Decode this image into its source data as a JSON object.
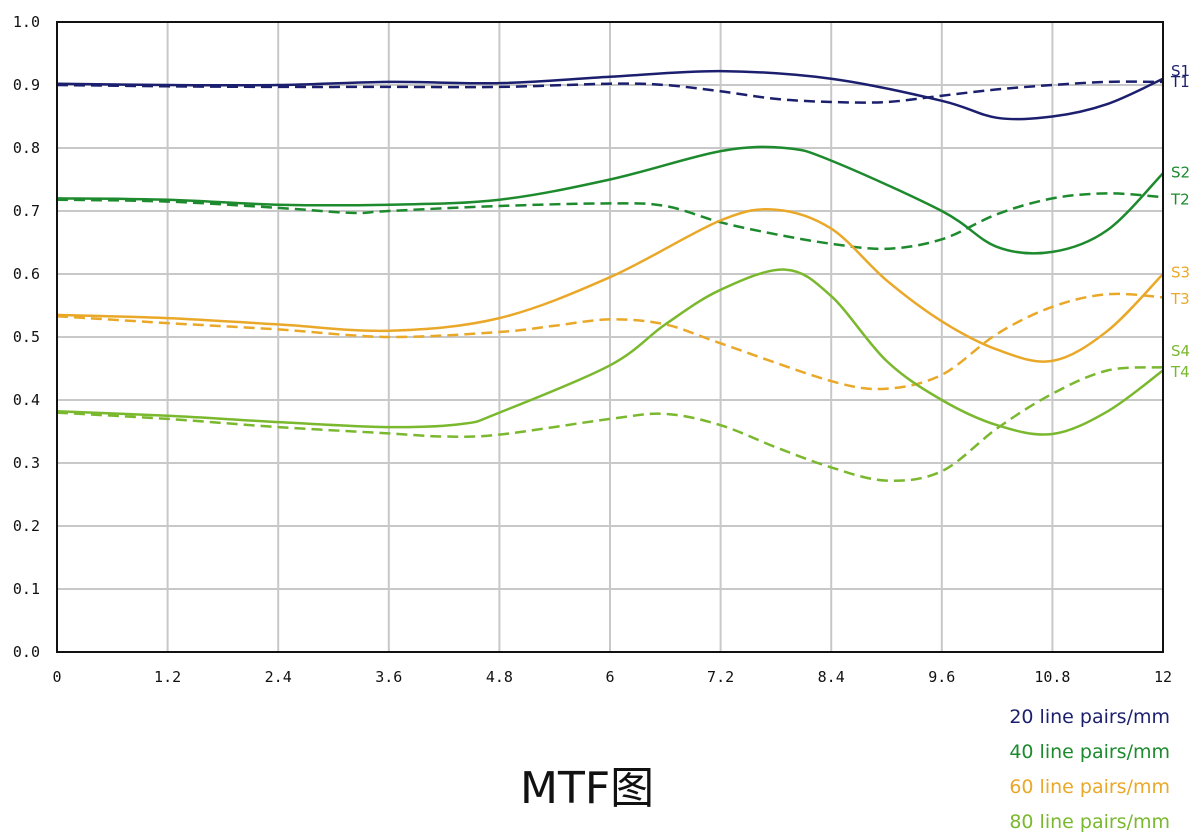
{
  "chart_data": {
    "type": "line",
    "title": "MTF图",
    "xlabel": "",
    "ylabel": "",
    "xlim": [
      0,
      12
    ],
    "ylim": [
      0,
      1.0
    ],
    "x_ticks": [
      "0",
      "1.2",
      "2.4",
      "3.6",
      "4.8",
      "6",
      "7.2",
      "8.4",
      "9.6",
      "10.8",
      "12"
    ],
    "y_ticks": [
      "0.0",
      "0.1",
      "0.2",
      "0.3",
      "0.4",
      "0.5",
      "0.6",
      "0.7",
      "0.8",
      "0.9",
      "1.0"
    ],
    "grid": true,
    "legend_position": "bottom-right",
    "legend": [
      {
        "label": "20 line pairs/mm",
        "color": "#1b1f6e"
      },
      {
        "label": "40 line pairs/mm",
        "color": "#1d8a2e"
      },
      {
        "label": "60 line pairs/mm",
        "color": "#eaa829"
      },
      {
        "label": "80 line pairs/mm",
        "color": "#7ab82e"
      }
    ],
    "series": [
      {
        "name": "S1",
        "group": 0,
        "style": "solid",
        "color": "#1b1f6e",
        "points": [
          [
            0,
            0.902
          ],
          [
            1.2,
            0.9
          ],
          [
            2.4,
            0.9
          ],
          [
            3.6,
            0.905
          ],
          [
            4.8,
            0.903
          ],
          [
            6,
            0.913
          ],
          [
            7.2,
            0.922
          ],
          [
            8.4,
            0.91
          ],
          [
            9.6,
            0.875
          ],
          [
            10.2,
            0.848
          ],
          [
            10.8,
            0.85
          ],
          [
            11.4,
            0.87
          ],
          [
            12,
            0.91
          ]
        ]
      },
      {
        "name": "T1",
        "group": 0,
        "style": "dashed",
        "color": "#1b1f6e",
        "points": [
          [
            0,
            0.9
          ],
          [
            1.2,
            0.898
          ],
          [
            2.4,
            0.897
          ],
          [
            3.6,
            0.897
          ],
          [
            4.8,
            0.897
          ],
          [
            6,
            0.902
          ],
          [
            6.6,
            0.9
          ],
          [
            7.2,
            0.89
          ],
          [
            7.8,
            0.878
          ],
          [
            8.4,
            0.873
          ],
          [
            9,
            0.873
          ],
          [
            9.6,
            0.883
          ],
          [
            10.2,
            0.893
          ],
          [
            10.8,
            0.9
          ],
          [
            11.4,
            0.905
          ],
          [
            12,
            0.905
          ]
        ]
      },
      {
        "name": "S2",
        "group": 1,
        "style": "solid",
        "color": "#1d8a2e",
        "points": [
          [
            0,
            0.72
          ],
          [
            1.2,
            0.718
          ],
          [
            2.4,
            0.71
          ],
          [
            3.6,
            0.71
          ],
          [
            4.8,
            0.718
          ],
          [
            6,
            0.75
          ],
          [
            7.2,
            0.795
          ],
          [
            7.9,
            0.8
          ],
          [
            8.4,
            0.78
          ],
          [
            9.6,
            0.7
          ],
          [
            10.2,
            0.643
          ],
          [
            10.8,
            0.635
          ],
          [
            11.4,
            0.67
          ],
          [
            12,
            0.76
          ]
        ]
      },
      {
        "name": "T2",
        "group": 1,
        "style": "dashed",
        "color": "#1d8a2e",
        "points": [
          [
            0,
            0.718
          ],
          [
            1.2,
            0.715
          ],
          [
            2.4,
            0.705
          ],
          [
            3.2,
            0.697
          ],
          [
            3.6,
            0.7
          ],
          [
            4.8,
            0.708
          ],
          [
            6,
            0.712
          ],
          [
            6.6,
            0.708
          ],
          [
            7.2,
            0.682
          ],
          [
            7.8,
            0.663
          ],
          [
            8.4,
            0.648
          ],
          [
            9,
            0.64
          ],
          [
            9.6,
            0.655
          ],
          [
            10.2,
            0.695
          ],
          [
            10.8,
            0.72
          ],
          [
            11.4,
            0.728
          ],
          [
            12,
            0.722
          ]
        ]
      },
      {
        "name": "S3",
        "group": 2,
        "style": "solid",
        "color": "#eaa829",
        "points": [
          [
            0,
            0.535
          ],
          [
            1.2,
            0.53
          ],
          [
            2.4,
            0.52
          ],
          [
            3.6,
            0.51
          ],
          [
            4.8,
            0.53
          ],
          [
            6,
            0.595
          ],
          [
            7.2,
            0.685
          ],
          [
            7.8,
            0.702
          ],
          [
            8.4,
            0.672
          ],
          [
            9,
            0.59
          ],
          [
            9.6,
            0.525
          ],
          [
            10.2,
            0.48
          ],
          [
            10.8,
            0.462
          ],
          [
            11.4,
            0.51
          ],
          [
            12,
            0.6
          ]
        ]
      },
      {
        "name": "T3",
        "group": 2,
        "style": "dashed",
        "color": "#eaa829",
        "points": [
          [
            0,
            0.533
          ],
          [
            1.2,
            0.522
          ],
          [
            2.4,
            0.512
          ],
          [
            3.6,
            0.5
          ],
          [
            4.8,
            0.508
          ],
          [
            5.4,
            0.518
          ],
          [
            6,
            0.528
          ],
          [
            6.6,
            0.52
          ],
          [
            7.2,
            0.49
          ],
          [
            8.4,
            0.43
          ],
          [
            9,
            0.418
          ],
          [
            9.6,
            0.44
          ],
          [
            10.2,
            0.505
          ],
          [
            10.8,
            0.548
          ],
          [
            11.4,
            0.568
          ],
          [
            12,
            0.563
          ]
        ]
      },
      {
        "name": "S4",
        "group": 3,
        "style": "solid",
        "color": "#7ab82e",
        "points": [
          [
            0,
            0.382
          ],
          [
            1.2,
            0.375
          ],
          [
            2.4,
            0.365
          ],
          [
            3.6,
            0.357
          ],
          [
            4.4,
            0.362
          ],
          [
            4.8,
            0.38
          ],
          [
            6,
            0.455
          ],
          [
            6.6,
            0.52
          ],
          [
            7.2,
            0.575
          ],
          [
            7.9,
            0.607
          ],
          [
            8.4,
            0.565
          ],
          [
            9,
            0.462
          ],
          [
            9.6,
            0.4
          ],
          [
            10.2,
            0.36
          ],
          [
            10.8,
            0.346
          ],
          [
            11.4,
            0.382
          ],
          [
            12,
            0.447
          ]
        ]
      },
      {
        "name": "T4",
        "group": 3,
        "style": "dashed",
        "color": "#7ab82e",
        "points": [
          [
            0,
            0.38
          ],
          [
            1.2,
            0.37
          ],
          [
            2.4,
            0.357
          ],
          [
            3.6,
            0.347
          ],
          [
            4.2,
            0.342
          ],
          [
            4.8,
            0.345
          ],
          [
            6,
            0.37
          ],
          [
            6.6,
            0.378
          ],
          [
            7.2,
            0.36
          ],
          [
            7.8,
            0.325
          ],
          [
            8.4,
            0.293
          ],
          [
            9,
            0.272
          ],
          [
            9.6,
            0.287
          ],
          [
            10.2,
            0.355
          ],
          [
            10.8,
            0.41
          ],
          [
            11.4,
            0.447
          ],
          [
            12,
            0.452
          ]
        ]
      }
    ],
    "line_labels": [
      {
        "text": "S1",
        "color": "#1b1f6e",
        "y": 0.924
      },
      {
        "text": "T1",
        "color": "#1b1f6e",
        "y": 0.906
      },
      {
        "text": "S2",
        "color": "#1d8a2e",
        "y": 0.763
      },
      {
        "text": "T2",
        "color": "#1d8a2e",
        "y": 0.72
      },
      {
        "text": "S3",
        "color": "#eaa829",
        "y": 0.604
      },
      {
        "text": "T3",
        "color": "#eaa829",
        "y": 0.562
      },
      {
        "text": "S4",
        "color": "#7ab82e",
        "y": 0.479
      },
      {
        "text": "T4",
        "color": "#7ab82e",
        "y": 0.446
      }
    ]
  }
}
